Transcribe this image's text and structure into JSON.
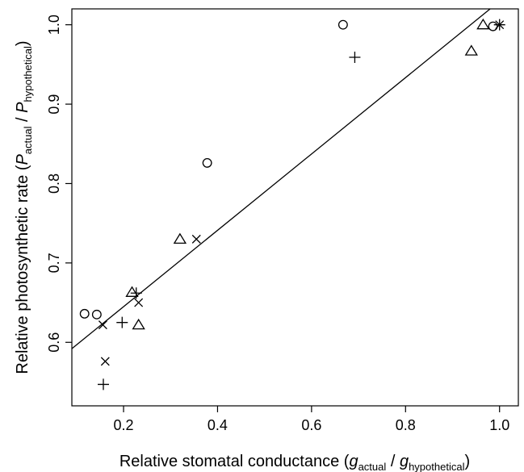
{
  "chart_data": {
    "type": "scatter",
    "title": "",
    "xlabel": {
      "prefix": "Relative stomatal conductance (",
      "sym1": "g",
      "sub1": "actual",
      "mid": " / ",
      "sym2": "g",
      "sub2": "hypothetical",
      "suffix": ")"
    },
    "ylabel": {
      "prefix": "Relative photosynthetic rate (",
      "sym1": "P",
      "sub1": "actual",
      "mid": " / ",
      "sym2": "P",
      "sub2": "hypothetical",
      "suffix": ")"
    },
    "xlim": [
      0.09,
      1.04
    ],
    "ylim": [
      0.52,
      1.02
    ],
    "x_ticks": [
      0.2,
      0.4,
      0.6,
      0.8,
      1.0
    ],
    "x_tick_labels": [
      "0.2",
      "0.4",
      "0.6",
      "0.8",
      "1.0"
    ],
    "y_ticks": [
      0.6,
      0.7,
      0.8,
      0.9,
      1.0
    ],
    "y_tick_labels": [
      "0.6",
      "0.7",
      "0.8",
      "0.9",
      "1.0"
    ],
    "grid": false,
    "series": [
      {
        "marker": "circle",
        "points": [
          [
            0.117,
            0.636
          ],
          [
            0.143,
            0.635
          ],
          [
            0.378,
            0.826
          ],
          [
            0.667,
            1.0
          ],
          [
            0.986,
            0.998
          ]
        ]
      },
      {
        "marker": "triangle",
        "points": [
          [
            0.218,
            0.663
          ],
          [
            0.232,
            0.622
          ],
          [
            0.32,
            0.73
          ],
          [
            0.94,
            0.967
          ],
          [
            0.965,
            1.0
          ]
        ]
      },
      {
        "marker": "plus",
        "points": [
          [
            0.157,
            0.547
          ],
          [
            0.197,
            0.625
          ],
          [
            0.227,
            0.662
          ],
          [
            0.692,
            0.959
          ],
          [
            1.0,
            1.0
          ]
        ]
      },
      {
        "marker": "cross",
        "points": [
          [
            0.156,
            0.622
          ],
          [
            0.161,
            0.576
          ],
          [
            0.232,
            0.65
          ],
          [
            0.355,
            0.73
          ],
          [
            1.0,
            1.0
          ]
        ]
      }
    ],
    "fit_line": {
      "x": [
        0.09,
        0.98
      ],
      "y": [
        0.592,
        1.02
      ]
    }
  }
}
